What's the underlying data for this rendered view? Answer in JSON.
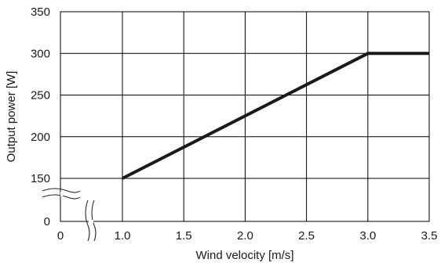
{
  "chart_data": {
    "type": "line",
    "title": "",
    "xlabel": "Wind velocity [m/s]",
    "ylabel": "Output power [W]",
    "xlim": [
      1.0,
      3.5
    ],
    "ylim": [
      150,
      350
    ],
    "grid": true,
    "axis_break": {
      "x": {
        "origin_label": "0"
      },
      "y": {
        "origin_label": "0"
      }
    },
    "x_ticks": [
      "1.0",
      "1.5",
      "2.0",
      "2.5",
      "3.0",
      "3.5"
    ],
    "y_ticks": [
      "150",
      "200",
      "250",
      "300",
      "350"
    ],
    "series": [
      {
        "x": [
          1.0,
          3.0,
          3.5
        ],
        "y": [
          150,
          300,
          300
        ]
      }
    ],
    "line_color": "#1a1a1a",
    "grid_color": "#000000"
  }
}
